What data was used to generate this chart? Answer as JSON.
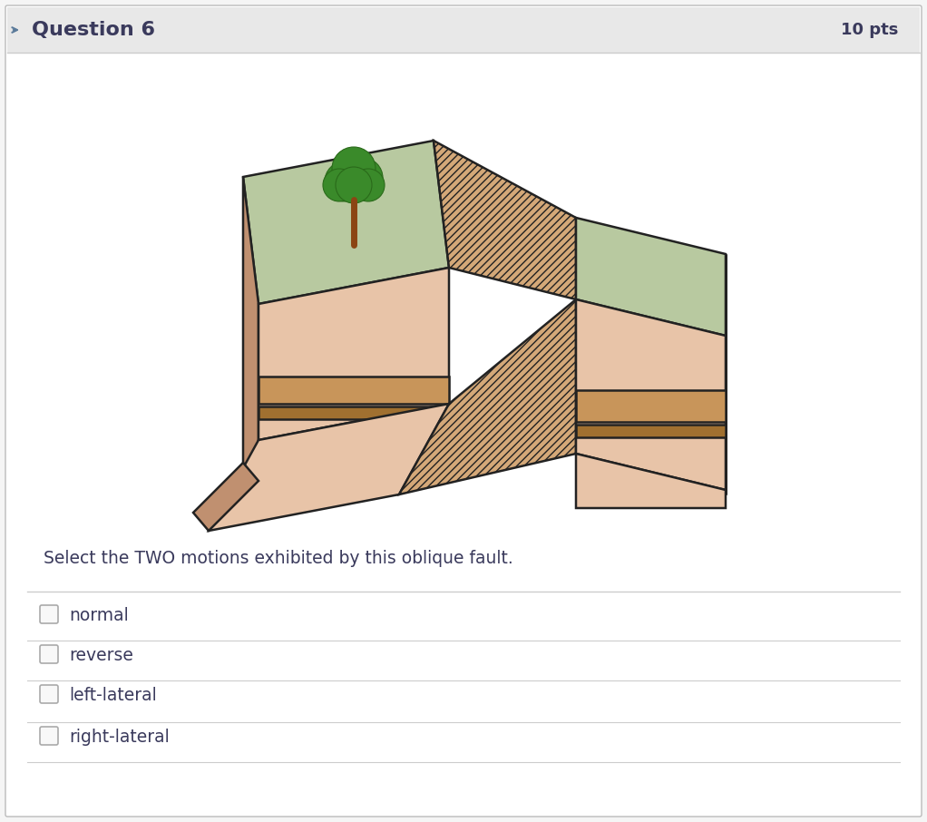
{
  "title": "Question 6",
  "pts": "10 pts",
  "question_text": "Select the TWO motions exhibited by this oblique fault.",
  "options": [
    "normal",
    "reverse",
    "left-lateral",
    "right-lateral"
  ],
  "bg_color": "#f5f5f5",
  "card_bg": "#ffffff",
  "header_bg": "#e8e8e8",
  "header_text_color": "#3a3a5c",
  "body_text_color": "#3a3a5c",
  "divider_color": "#cccccc",
  "checkbox_color": "#aaaaaa",
  "arrow_color": "#5a7a9a",
  "grass_color": "#b8c9a0",
  "rock_color": "#e8c4a8",
  "rock_dark": "#c09070",
  "stripe_color": "#c8955a",
  "stripe_dark": "#a07030",
  "outline_color": "#222222",
  "fault_fill": "#d4a878",
  "tree_trunk": "#8B4513",
  "tree_green": "#3a8a2a",
  "tree_green2": "#2a6a1a"
}
